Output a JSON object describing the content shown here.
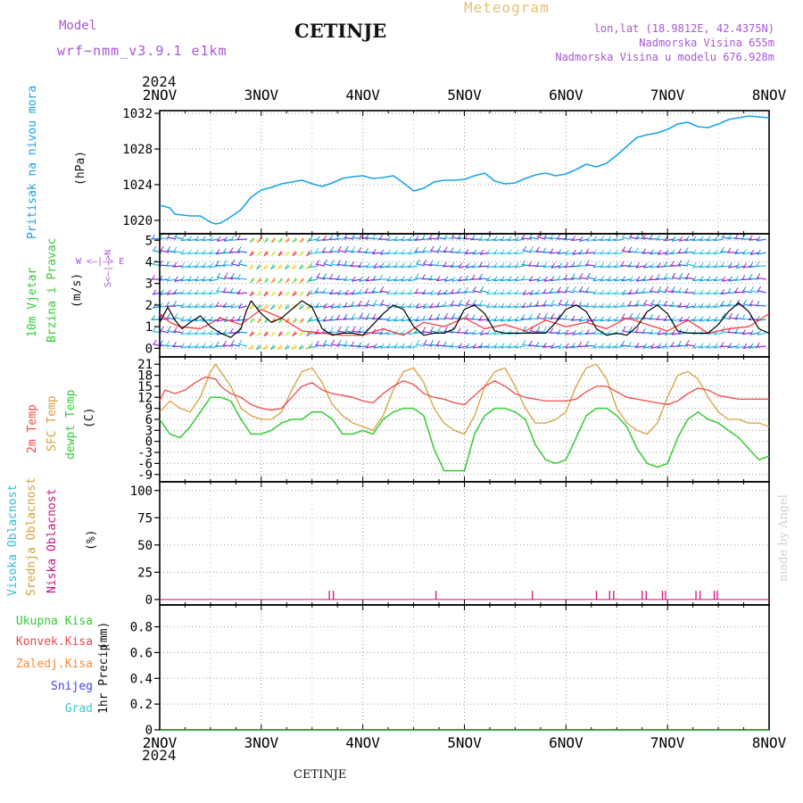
{
  "header": {
    "model_label": "Model",
    "model_name": "wrf−nmm_v3.9.1  e1km",
    "station": "CETINJE",
    "title": "Meteogram",
    "coords": "lon,lat (18.9812E, 42.4375N)",
    "elevation": "Nadmorska Visina 655m",
    "model_elevation": "Nadmorska Visina u modelu 676.928m",
    "year_top": "2024",
    "year_bottom": "2024",
    "footer_station": "CETINJE",
    "credit": "made by Angel"
  },
  "colors": {
    "pressure": "#1aa3e8",
    "temp2m": "#f04848",
    "sfc": "#d6a040",
    "dewpt": "#33cc33",
    "wind_speed": "#000000",
    "gust": "#ff3030",
    "cloud_high": "#33bbdd",
    "cloud_mid": "#d6a040",
    "cloud_low": "#cc1188",
    "precip_total": "#33cc33",
    "precip_conv": "#f04848",
    "precip_frozen": "#ff8c33",
    "precip_snow": "#4444dd",
    "precip_hail": "#33cccc",
    "label_purple": "#a855d8"
  },
  "chart_data": [
    {
      "type": "line",
      "panel": "pressure",
      "x_ticks": [
        "2NOV",
        "3NOV",
        "4NOV",
        "5NOV",
        "6NOV",
        "7NOV",
        "8NOV"
      ],
      "ylabel_left": "Pritisak na nivou mora",
      "unit": "(hPa)",
      "ylim": [
        1018.5,
        1032.3
      ],
      "yticks": [
        1020,
        1024,
        1028,
        1032
      ],
      "grid": true,
      "series": [
        {
          "name": "",
          "x": [
            0,
            0.1,
            0.15,
            0.3,
            0.4,
            0.5,
            0.55,
            0.6,
            0.7,
            0.8,
            0.9,
            1.0,
            1.1,
            1.2,
            1.3,
            1.4,
            1.5,
            1.6,
            1.7,
            1.8,
            1.9,
            2.0,
            2.1,
            2.2,
            2.3,
            2.4,
            2.5,
            2.6,
            2.7,
            2.8,
            2.9,
            3.0,
            3.1,
            3.2,
            3.3,
            3.4,
            3.5,
            3.6,
            3.7,
            3.8,
            3.9,
            4.0,
            4.1,
            4.2,
            4.3,
            4.4,
            4.5,
            4.6,
            4.7,
            4.8,
            4.9,
            5.0,
            5.1,
            5.2,
            5.3,
            5.4,
            5.5,
            5.6,
            5.7,
            5.8,
            5.9,
            6.0
          ],
          "values": [
            1021.7,
            1021.4,
            1020.7,
            1020.5,
            1020.5,
            1019.8,
            1019.6,
            1019.7,
            1020.4,
            1021.2,
            1022.6,
            1023.4,
            1023.7,
            1024.1,
            1024.3,
            1024.5,
            1024.1,
            1023.8,
            1024.2,
            1024.7,
            1024.9,
            1025.0,
            1024.7,
            1024.8,
            1025.0,
            1024.2,
            1023.3,
            1023.6,
            1024.3,
            1024.5,
            1024.5,
            1024.6,
            1025.0,
            1025.3,
            1024.4,
            1024.1,
            1024.2,
            1024.7,
            1025.1,
            1025.3,
            1025.0,
            1025.2,
            1025.7,
            1026.3,
            1026.0,
            1026.4,
            1027.3,
            1028.3,
            1029.3,
            1029.6,
            1029.8,
            1030.2,
            1030.8,
            1031.0,
            1030.5,
            1030.4,
            1030.8,
            1031.3,
            1031.5,
            1031.7,
            1031.6,
            1031.5
          ]
        }
      ]
    },
    {
      "type": "line",
      "panel": "wind",
      "ylabel_left": "10m Vjetar",
      "ylabel_left2": "Brzina i Pravac",
      "unit": "(m/s)",
      "compass": "W <—|—> E",
      "compass_vertical": "S<—|—>N",
      "ylim": [
        -0.4,
        5.3
      ],
      "yticks": [
        0,
        1,
        2,
        3,
        4,
        5
      ],
      "grid": true,
      "series": [
        {
          "name": "",
          "x": [
            0,
            0.08,
            0.15,
            0.22,
            0.3,
            0.4,
            0.5,
            0.6,
            0.7,
            0.8,
            0.85,
            0.9,
            1.0,
            1.1,
            1.2,
            1.3,
            1.4,
            1.5,
            1.6,
            1.7,
            1.8,
            1.9,
            2.0,
            2.1,
            2.2,
            2.3,
            2.4,
            2.5,
            2.6,
            2.7,
            2.8,
            2.9,
            3.0,
            3.1,
            3.2,
            3.3,
            3.4,
            3.5,
            3.6,
            3.7,
            3.8,
            3.9,
            4.0,
            4.1,
            4.2,
            4.3,
            4.4,
            4.5,
            4.6,
            4.7,
            4.8,
            4.9,
            5.0,
            5.1,
            5.2,
            5.3,
            5.4,
            5.5,
            5.6,
            5.7,
            5.8,
            5.9,
            6.0
          ],
          "values": [
            1.2,
            1.9,
            1.3,
            0.9,
            1.2,
            1.5,
            1.0,
            0.7,
            0.5,
            0.9,
            1.7,
            2.2,
            1.6,
            1.2,
            1.4,
            1.8,
            2.2,
            1.9,
            0.9,
            0.6,
            0.7,
            0.7,
            0.6,
            1.1,
            1.6,
            2.0,
            1.8,
            1.0,
            0.6,
            0.7,
            0.7,
            0.9,
            1.8,
            2.0,
            1.6,
            0.8,
            0.7,
            0.7,
            0.7,
            0.7,
            0.7,
            1.2,
            1.8,
            2.0,
            1.7,
            0.9,
            0.6,
            0.7,
            0.6,
            1.0,
            1.7,
            2.0,
            1.6,
            0.8,
            0.7,
            0.7,
            0.7,
            1.1,
            1.7,
            2.1,
            1.7,
            0.9,
            0.7
          ]
        },
        {
          "name": "",
          "x": [
            0,
            0.1,
            0.2,
            0.4,
            0.6,
            0.8,
            1.0,
            1.2,
            1.4,
            1.6,
            1.8,
            2.0,
            2.2,
            2.4,
            2.6,
            2.8,
            3.0,
            3.2,
            3.4,
            3.6,
            3.8,
            4.0,
            4.2,
            4.4,
            4.6,
            4.8,
            5.0,
            5.2,
            5.4,
            5.6,
            5.8,
            6.0
          ],
          "values": [
            1.6,
            1.2,
            1.0,
            0.9,
            1.4,
            1.1,
            1.8,
            1.4,
            0.8,
            0.7,
            0.6,
            0.6,
            0.9,
            0.6,
            1.2,
            1.0,
            1.4,
            0.9,
            1.1,
            0.8,
            1.3,
            1.0,
            1.2,
            0.9,
            1.4,
            1.1,
            0.8,
            1.3,
            0.7,
            0.9,
            1.0,
            1.6
          ]
        }
      ]
    },
    {
      "type": "line",
      "panel": "temperature",
      "ylabel_left": "2m Temp",
      "ylabel_left2": "SFC Temp",
      "ylabel_left3": "dewpt Temp",
      "unit": "(C)",
      "ylim": [
        -11,
        23
      ],
      "yticks": [
        -9,
        -6,
        -3,
        0,
        3,
        6,
        9,
        12,
        15,
        18,
        21
      ],
      "grid": true,
      "series": [
        {
          "name": "",
          "x": [
            0,
            0.05,
            0.15,
            0.25,
            0.35,
            0.45,
            0.55,
            0.6,
            0.7,
            0.8,
            0.9,
            1.0,
            1.1,
            1.2,
            1.3,
            1.4,
            1.5,
            1.6,
            1.7,
            1.8,
            1.9,
            2.0,
            2.1,
            2.2,
            2.3,
            2.4,
            2.5,
            2.6,
            2.7,
            2.8,
            2.9,
            3.0,
            3.1,
            3.2,
            3.3,
            3.4,
            3.5,
            3.6,
            3.7,
            3.8,
            3.9,
            4.0,
            4.1,
            4.2,
            4.3,
            4.4,
            4.5,
            4.6,
            4.7,
            4.8,
            4.9,
            5.0,
            5.1,
            5.2,
            5.3,
            5.4,
            5.5,
            5.6,
            5.7,
            5.8,
            5.9,
            6.0
          ],
          "values": [
            11,
            14,
            13,
            14,
            16,
            17.5,
            17,
            15,
            13,
            12,
            10,
            9,
            8.5,
            9,
            12,
            15,
            16,
            14,
            13,
            12.5,
            12,
            11,
            10.5,
            13,
            15,
            16.5,
            15.5,
            13,
            12,
            11.5,
            10.5,
            10,
            12.5,
            15,
            16.5,
            15,
            13,
            12,
            11.5,
            11,
            11,
            11,
            11.5,
            13.5,
            15,
            15,
            13.5,
            12,
            11.5,
            11,
            10.5,
            10,
            11,
            13,
            14.5,
            14,
            12.5,
            12,
            11.5,
            11.5,
            11.5,
            11.5
          ]
        },
        {
          "name": "",
          "x": [
            0,
            0.1,
            0.2,
            0.3,
            0.4,
            0.5,
            0.55,
            0.6,
            0.7,
            0.8,
            0.9,
            1.0,
            1.1,
            1.2,
            1.3,
            1.4,
            1.5,
            1.6,
            1.7,
            1.8,
            1.9,
            2.0,
            2.1,
            2.2,
            2.3,
            2.4,
            2.5,
            2.6,
            2.7,
            2.8,
            2.9,
            3.0,
            3.1,
            3.2,
            3.3,
            3.4,
            3.5,
            3.6,
            3.7,
            3.8,
            3.9,
            4.0,
            4.1,
            4.2,
            4.3,
            4.4,
            4.5,
            4.6,
            4.7,
            4.8,
            4.9,
            5.0,
            5.1,
            5.2,
            5.3,
            5.4,
            5.5,
            5.6,
            5.7,
            5.8,
            5.9,
            6.0
          ],
          "values": [
            8,
            11,
            9,
            8,
            12,
            19,
            21,
            19,
            15,
            9,
            7,
            6,
            6,
            8,
            14,
            19,
            20,
            16,
            10,
            7,
            5,
            4,
            3,
            7,
            14,
            19,
            20,
            16,
            9,
            5,
            3,
            2,
            7,
            15,
            19,
            20,
            15,
            9,
            5,
            5,
            6,
            8,
            15,
            20,
            21,
            17,
            9,
            5,
            3,
            2,
            5,
            12,
            18,
            19,
            17,
            12,
            8,
            6,
            6,
            5,
            5,
            4
          ]
        },
        {
          "name": "",
          "x": [
            0,
            0.05,
            0.1,
            0.2,
            0.3,
            0.4,
            0.5,
            0.6,
            0.7,
            0.8,
            0.9,
            1.0,
            1.1,
            1.2,
            1.3,
            1.4,
            1.5,
            1.6,
            1.7,
            1.8,
            1.9,
            2.0,
            2.1,
            2.2,
            2.3,
            2.4,
            2.5,
            2.6,
            2.7,
            2.8,
            2.9,
            3.0,
            3.1,
            3.2,
            3.3,
            3.4,
            3.5,
            3.6,
            3.7,
            3.8,
            3.9,
            4.0,
            4.1,
            4.2,
            4.3,
            4.4,
            4.5,
            4.6,
            4.7,
            4.8,
            4.9,
            5.0,
            5.1,
            5.2,
            5.3,
            5.4,
            5.5,
            5.6,
            5.7,
            5.8,
            5.9,
            6.0
          ],
          "values": [
            6,
            4,
            2,
            1,
            4,
            8,
            12,
            12,
            11,
            6,
            2,
            2,
            3,
            5,
            6,
            6,
            8,
            8,
            6,
            2,
            2,
            3,
            2,
            6,
            8,
            9,
            9,
            7,
            -2,
            -8,
            -8,
            -8,
            2,
            7,
            9,
            9,
            8,
            6,
            -1,
            -5,
            -6,
            -5,
            1,
            7,
            9,
            9,
            7,
            4,
            -2,
            -6,
            -7,
            -6,
            1,
            6,
            8,
            6,
            5,
            3,
            1,
            -2,
            -5,
            -4
          ]
        }
      ]
    },
    {
      "type": "bar",
      "panel": "clouds",
      "ylabel_left": "Visoka Oblacnost",
      "ylabel_left2": "Srednja Oblacnost",
      "ylabel_left3": "Niska Oblacnost",
      "unit": "(%)",
      "ylim": [
        -5,
        108
      ],
      "yticks": [
        0,
        25,
        50,
        75,
        100
      ],
      "grid": true,
      "series": [
        {
          "name": "",
          "x": [
            1.67,
            1.71,
            2.72,
            3.67,
            4.3,
            4.43,
            4.47,
            4.75,
            4.79,
            4.95,
            4.98,
            5.28,
            5.32,
            5.46,
            5.49
          ],
          "values": [
            8,
            8,
            8,
            8,
            8,
            8,
            8,
            8,
            8,
            8,
            8,
            8,
            8,
            8,
            8
          ]
        }
      ]
    },
    {
      "type": "line",
      "panel": "precipitation",
      "legend": [
        "Ukupna Kisa",
        "Konvek.Kisa",
        "Zaledj.Kisa",
        "Snijeg",
        "Grad"
      ],
      "ylabel_left": "1hr Precip",
      "unit": "(mm)",
      "ylim": [
        0,
        0.97
      ],
      "yticks": [
        0,
        0.2,
        0.4,
        0.6,
        0.8
      ],
      "grid": true,
      "series": [
        {
          "name": "Ukupna Kisa",
          "x": [
            0,
            6
          ],
          "values": [
            0,
            0
          ]
        }
      ]
    }
  ]
}
